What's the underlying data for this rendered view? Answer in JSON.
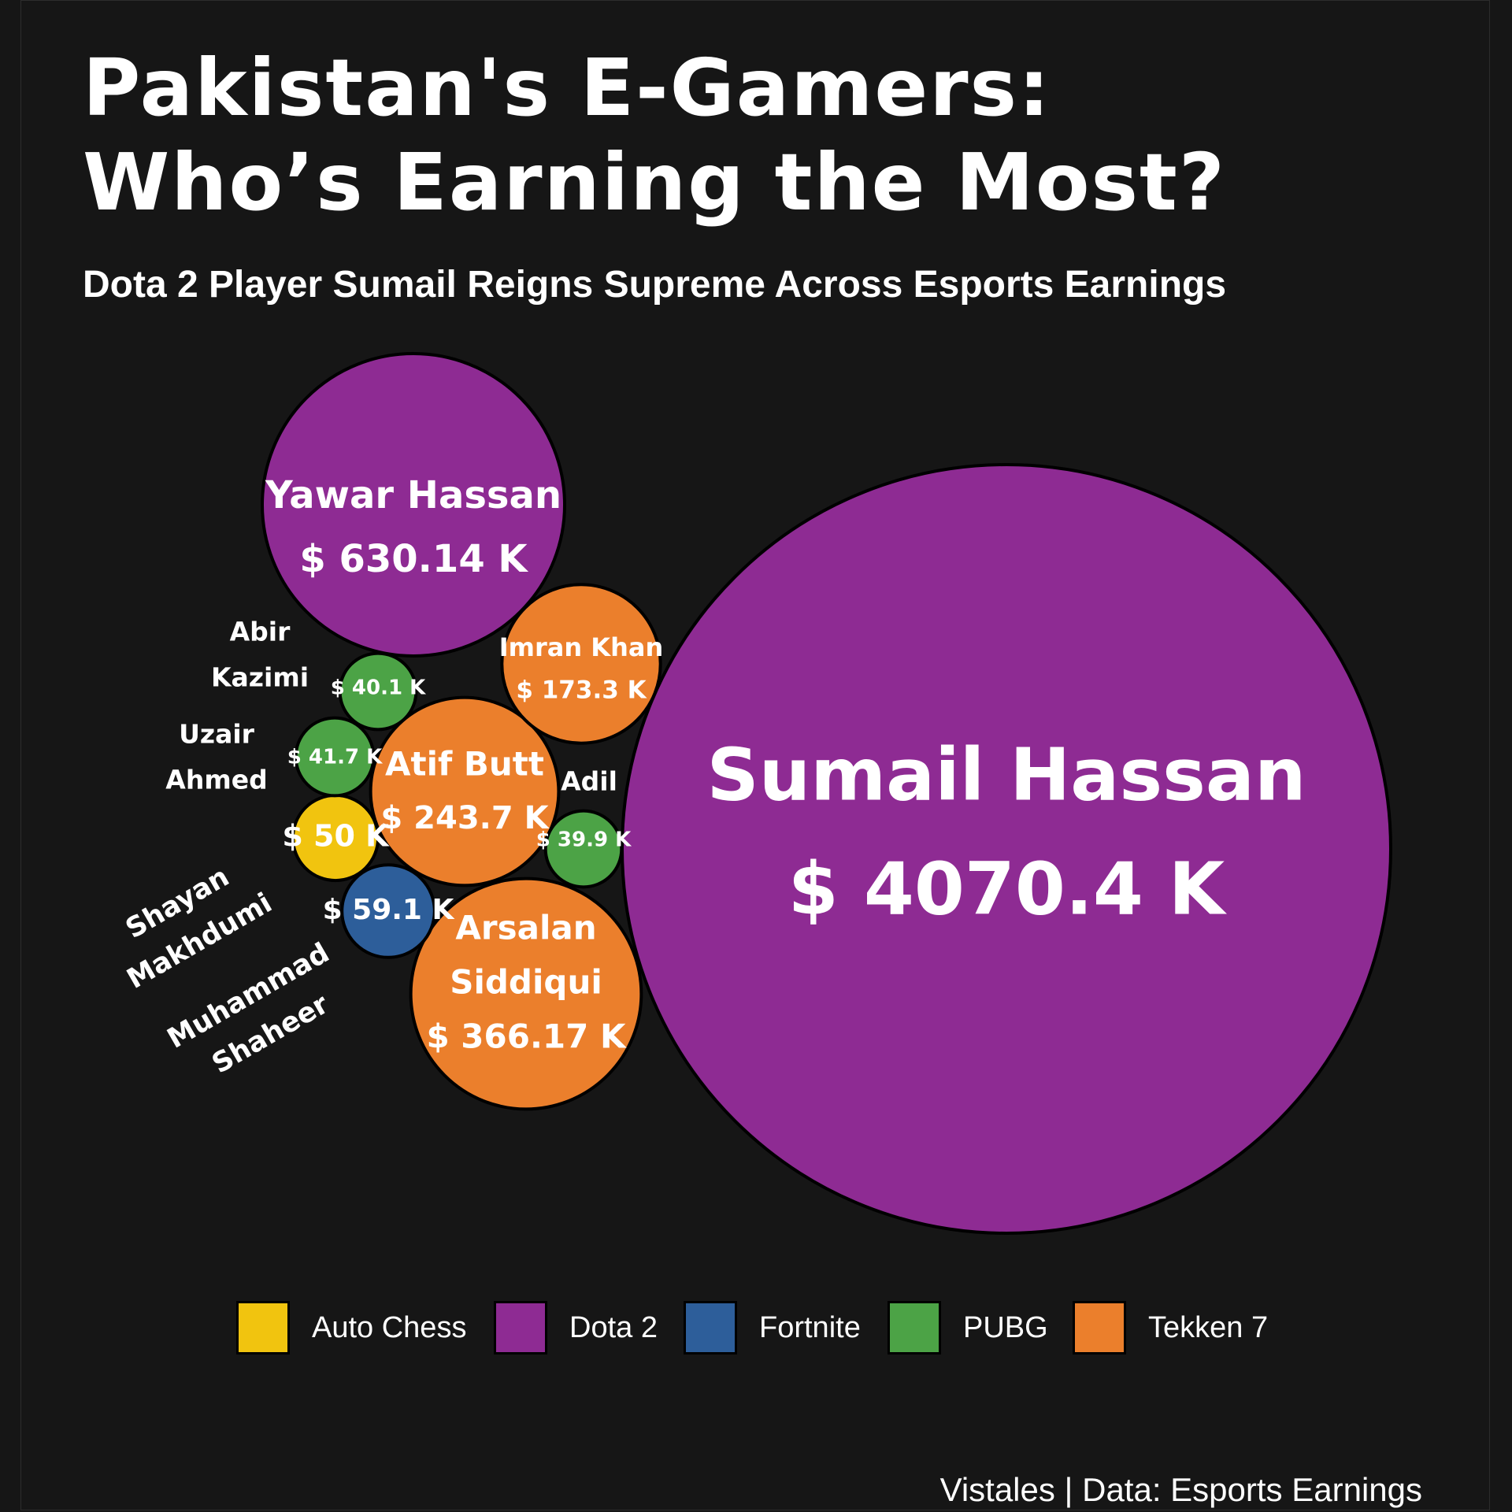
{
  "title_lines": [
    "Pakistan's E-Gamers:",
    "Who’s Earning the Most?"
  ],
  "subtitle": "Dota 2 Player Sumail Reigns Supreme Across Esports Earnings",
  "caption": "Vistales | Data: Esports Earnings",
  "chart_data": {
    "type": "bubble",
    "value_unit": "K",
    "points": [
      {
        "player": "Sumail Hassan",
        "game": "Dota 2",
        "value": 4070.4,
        "label": "$ 4070.4 K"
      },
      {
        "player": "Yawar Hassan",
        "game": "Dota 2",
        "value": 630.14,
        "label": "$ 630.14 K"
      },
      {
        "player": "Arsalan Siddiqui",
        "game": "Tekken 7",
        "value": 366.17,
        "label": "$ 366.17 K"
      },
      {
        "player": "Atif Butt",
        "game": "Tekken 7",
        "value": 243.7,
        "label": "$ 243.7 K"
      },
      {
        "player": "Imran Khan",
        "game": "Tekken 7",
        "value": 173.3,
        "label": "$ 173.3 K"
      },
      {
        "player": "Muhammad Shaheer",
        "game": "Fortnite",
        "value": 59.1,
        "label": "$ 59.1 K"
      },
      {
        "player": "Shayan Makhdumi",
        "game": "Auto Chess",
        "value": 50,
        "label": "$ 50 K"
      },
      {
        "player": "Uzair Ahmed",
        "game": "PUBG",
        "value": 41.7,
        "label": "$ 41.7 K"
      },
      {
        "player": "Abir Kazimi",
        "game": "PUBG",
        "value": 40.1,
        "label": "$ 40.1 K"
      },
      {
        "player": "Adil",
        "game": "PUBG",
        "value": 39.9,
        "label": "$ 39.9 K"
      }
    ],
    "legend": [
      {
        "label": "Auto Chess",
        "color": "#F1C40F"
      },
      {
        "label": "Dota 2",
        "color": "#8E2B93"
      },
      {
        "label": "Fortnite",
        "color": "#2D5E9A"
      },
      {
        "label": "PUBG",
        "color": "#4CA346"
      },
      {
        "label": "Tekken 7",
        "color": "#EB7F2C"
      }
    ],
    "legend_placement": "bottom"
  }
}
